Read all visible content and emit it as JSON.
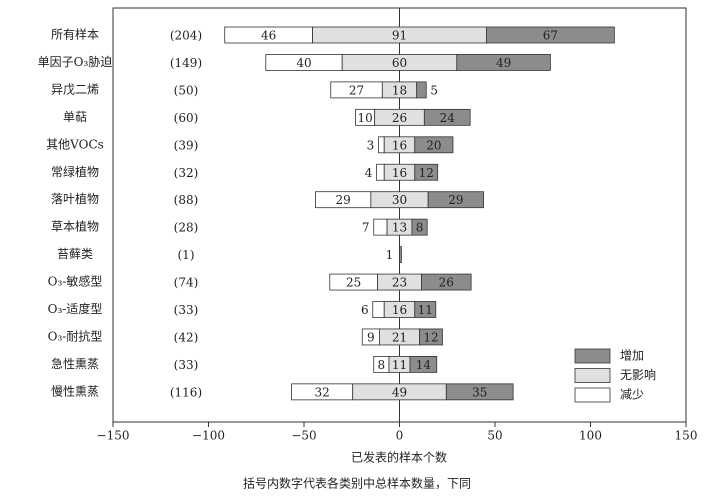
{
  "chart_data": {
    "type": "diverging-bar",
    "xlabel": "已发表的样本个数",
    "caption": "括号内数字代表各类别中总样本数量，下同",
    "categories": [
      "所有样本",
      "单因子O₃胁迫",
      "异戊二烯",
      "单萜",
      "其他VOCs",
      "常绿植物",
      "落叶植物",
      "草本植物",
      "苔藓类",
      "O₃-敏感型",
      "O₃-适度型",
      "O₃-耐抗型",
      "急性熏蒸",
      "慢性熏蒸"
    ],
    "counts": [
      "(204)",
      "(149)",
      "(50)",
      "(60)",
      "(39)",
      "(32)",
      "(88)",
      "(28)",
      "(1)",
      "(74)",
      "(33)",
      "(42)",
      "(33)",
      "(116)"
    ],
    "series": [
      {
        "name": "减少",
        "color": "#ffffff",
        "values": [
          46,
          40,
          27,
          10,
          3,
          4,
          29,
          7,
          0,
          25,
          6,
          9,
          8,
          32
        ]
      },
      {
        "name": "无影响",
        "color": "#e0e0e0",
        "values": [
          91,
          60,
          18,
          26,
          16,
          16,
          30,
          13,
          0,
          23,
          16,
          21,
          11,
          49
        ]
      },
      {
        "name": "增加",
        "color": "#8c8c8c",
        "values": [
          67,
          49,
          5,
          24,
          20,
          12,
          29,
          8,
          1,
          26,
          11,
          12,
          14,
          35
        ]
      }
    ],
    "xlim": [
      -150,
      150
    ],
    "xticks": [
      {
        "value": -150,
        "label": "−150"
      },
      {
        "value": -100,
        "label": "−100"
      },
      {
        "value": -50,
        "label": "−50"
      },
      0,
      50,
      100,
      150
    ]
  }
}
